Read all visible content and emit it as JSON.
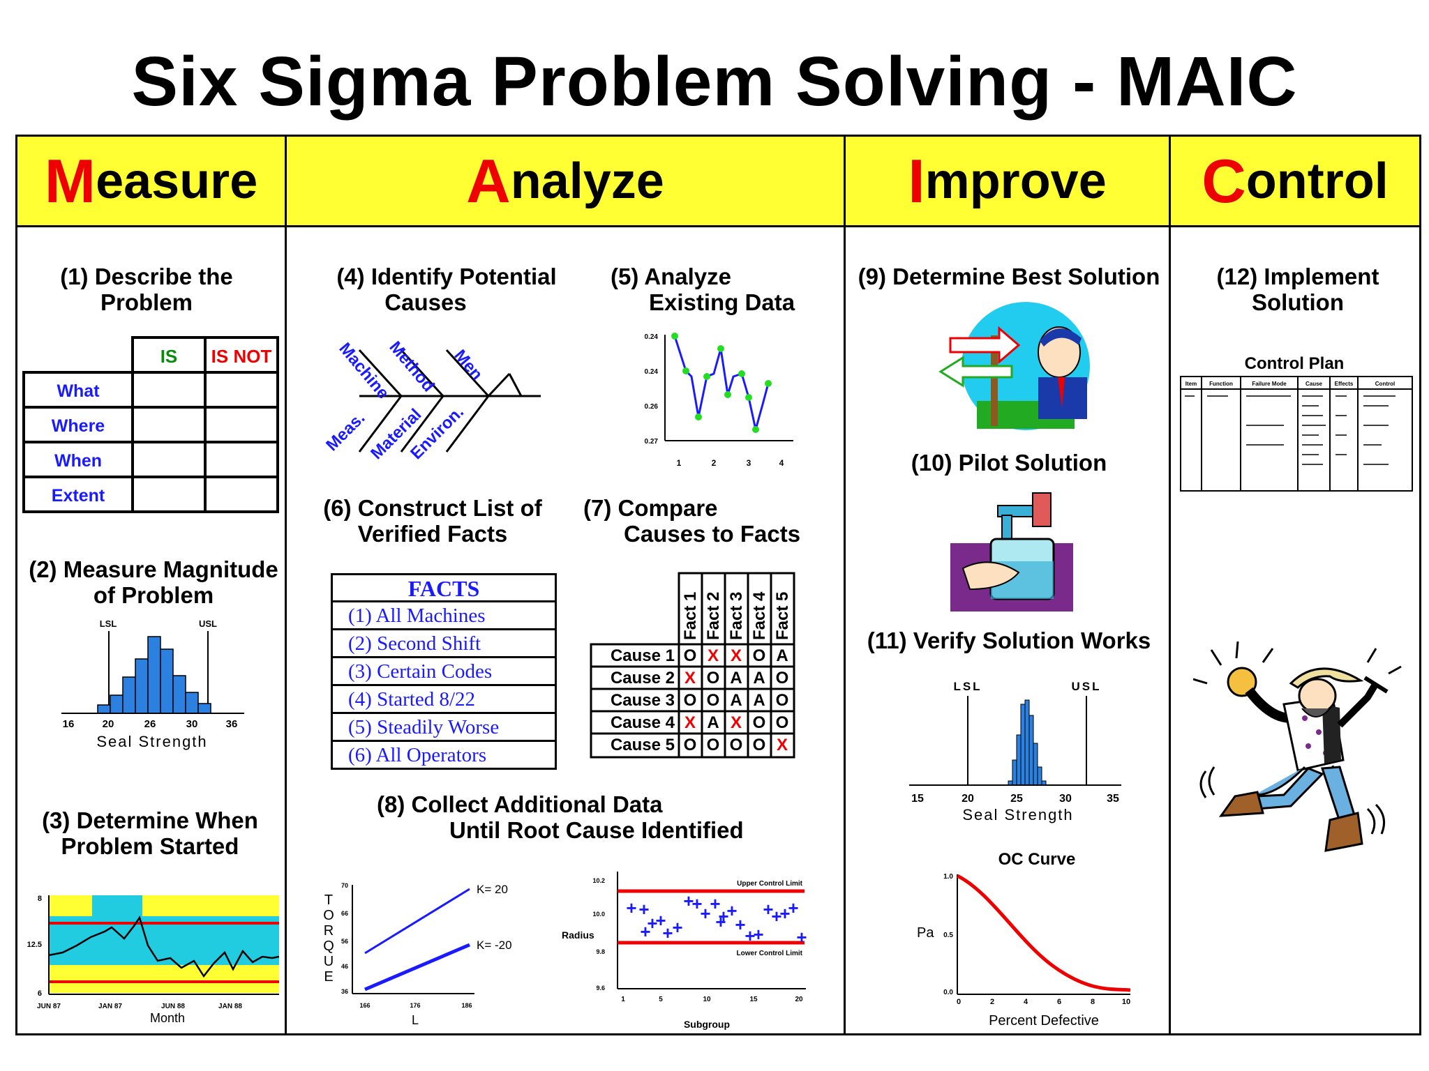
{
  "title": "Six Sigma Problem Solving - MAIC",
  "phases": [
    {
      "initial": "M",
      "rest": "easure"
    },
    {
      "initial": "A",
      "rest": "nalyze"
    },
    {
      "initial": "I",
      "rest": "mprove"
    },
    {
      "initial": "C",
      "rest": "ontrol"
    }
  ],
  "steps": {
    "s1": [
      "(1) Describe the",
      "Problem"
    ],
    "s2": [
      "(2) Measure Magnitude",
      "of Problem"
    ],
    "s3": [
      "(3) Determine When",
      "Problem Started"
    ],
    "s4": [
      "(4) Identify Potential",
      "Causes"
    ],
    "s5": [
      "(5) Analyze",
      "Existing Data"
    ],
    "s6": [
      "(6) Construct List of",
      "Verified Facts"
    ],
    "s7": [
      "(7) Compare",
      "Causes to Facts"
    ],
    "s8": [
      "(8) Collect Additional Data",
      "Until Root Cause Identified"
    ],
    "s9": "(9) Determine Best Solution",
    "s10": "(10) Pilot Solution",
    "s11": "(11) Verify Solution Works",
    "s12": [
      "(12) Implement",
      "Solution"
    ]
  },
  "is_table": {
    "headers": [
      "IS",
      "IS NOT"
    ],
    "rows": [
      "What",
      "Where",
      "When",
      "Extent"
    ]
  },
  "histogram1": {
    "limits": [
      "LSL",
      "USL"
    ],
    "ticks": [
      "16",
      "20",
      "26",
      "30",
      "36"
    ],
    "xlabel": "Seal Strength"
  },
  "timechart": {
    "yticks": [
      "8",
      "12.5",
      "6"
    ],
    "xticks": [
      "JUN 87",
      "JAN 87",
      "JUN 88",
      "JAN 88"
    ],
    "xlabel": "Month"
  },
  "fishbone": {
    "labels": [
      "Machine",
      "Method",
      "Men",
      "Meas.",
      "Material",
      "Environ."
    ]
  },
  "existing_chart": {
    "yticks": [
      "0.24",
      "0.24",
      "0.26",
      "0.27"
    ],
    "xticks": [
      "1",
      "2",
      "3",
      "4"
    ]
  },
  "facts": {
    "header": "FACTS",
    "items": [
      "(1) All Machines",
      "(2) Second Shift",
      "(3) Certain Codes",
      "(4) Started 8/22",
      "(5) Steadily Worse",
      "(6) All Operators"
    ]
  },
  "compare": {
    "columns": [
      "Fact 1",
      "Fact 2",
      "Fact 3",
      "Fact 4",
      "Fact 5"
    ],
    "rows": [
      {
        "cause": "Cause 1",
        "cells": [
          "O",
          "X",
          "X",
          "O",
          "A"
        ]
      },
      {
        "cause": "Cause 2",
        "cells": [
          "X",
          "O",
          "A",
          "A",
          "O"
        ]
      },
      {
        "cause": "Cause 3",
        "cells": [
          "O",
          "O",
          "A",
          "A",
          "O"
        ]
      },
      {
        "cause": "Cause 4",
        "cells": [
          "X",
          "A",
          "X",
          "O",
          "O"
        ]
      },
      {
        "cause": "Cause 5",
        "cells": [
          "O",
          "O",
          "O",
          "O",
          "X"
        ]
      }
    ]
  },
  "torque": {
    "ylabel": "TORQUE",
    "xlabel": "L",
    "line_labels": [
      "K= 20",
      "K= -20"
    ],
    "yticks": [
      "70",
      "66",
      "56",
      "46",
      "36"
    ],
    "xticks": [
      "166",
      "176",
      "186"
    ]
  },
  "control_chart": {
    "ylabel": "Radius",
    "xlabel": "Subgroup",
    "ucl_label": "Upper Control Limit",
    "lcl_label": "Lower Control Limit",
    "yticks": [
      "10.2",
      "10.0",
      "9.8",
      "9.6"
    ],
    "xticks": [
      "1",
      "5",
      "10",
      "15",
      "20"
    ]
  },
  "histogram2": {
    "limits": [
      "LSL",
      "USL"
    ],
    "ticks": [
      "15",
      "20",
      "25",
      "30",
      "35"
    ],
    "xlabel": "Seal Strength"
  },
  "oc_curve": {
    "title": "OC Curve",
    "ylabel": "Pa",
    "xlabel": "Percent Defective",
    "yticks": [
      "1.0",
      "0.5",
      "0.0"
    ],
    "xticks": [
      "0",
      "2",
      "4",
      "6",
      "8",
      "10"
    ]
  },
  "control_plan": {
    "title": "Control Plan",
    "columns": [
      "Item",
      "Function",
      "Failure Mode",
      "Cause",
      "Effects",
      "Control"
    ]
  },
  "colors": {
    "header_bg": "#ffff33",
    "initial": "#ee0000",
    "blue": "#1a1aff",
    "red": "#ee0000"
  }
}
